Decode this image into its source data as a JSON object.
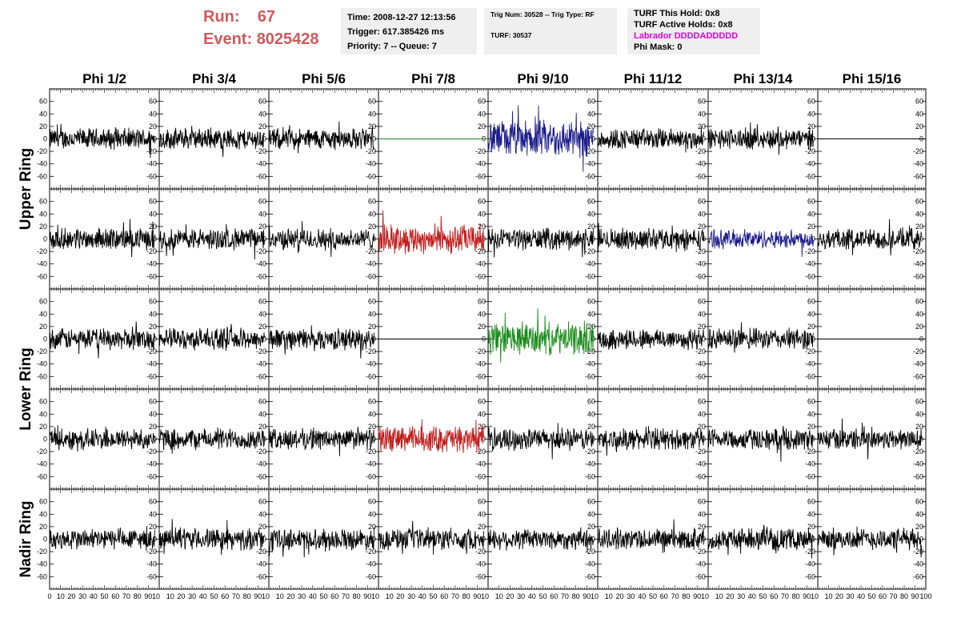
{
  "run": {
    "label": "Run:",
    "value": "67"
  },
  "event": {
    "label": "Event:",
    "value": "8025428"
  },
  "info1": {
    "time": "Time: 2008-12-27 12:13:56",
    "trigger": "Trigger: 617.385426 ms",
    "priority": "Priority: 7 -- Queue: 7"
  },
  "info2": {
    "trig": "Trig Num: 30528 -- Trig Type: RF",
    "turf": "TURF: 30537"
  },
  "info3": {
    "this_hold": "TURF This Hold: 0x8",
    "active_holds": "TURF Active Holds: 0x8",
    "labrador": "Labrador DDDDADDDDD",
    "phi_mask": "Phi Mask: 0"
  },
  "colors": {
    "accent_red": "#d05a5a",
    "labrador": "#e000e0",
    "trace_black": "#000000",
    "trace_blue": "#1c1c8c",
    "trace_red": "#c01c1c",
    "trace_green": "#1a8a1a",
    "panel_bg": "#efefef"
  },
  "chart_data": {
    "type": "line",
    "columns": [
      "Phi 1/2",
      "Phi 3/4",
      "Phi 5/6",
      "Phi 7/8",
      "Phi 9/10",
      "Phi 11/12",
      "Phi 13/14",
      "Phi 15/16"
    ],
    "rows": [
      {
        "name": "Upper Ring"
      },
      {
        "name": ""
      },
      {
        "name": "Lower Ring"
      },
      {
        "name": ""
      },
      {
        "name": "Nadir Ring"
      }
    ],
    "row_labels": [
      {
        "text": "Upper Ring",
        "rows": [
          0,
          1
        ]
      },
      {
        "text": "Lower Ring",
        "rows": [
          2,
          3
        ]
      },
      {
        "text": "Nadir Ring",
        "rows": [
          4
        ]
      }
    ],
    "ylim": [
      -75,
      75
    ],
    "yticks": [
      "-60",
      "-40",
      "-20",
      "0",
      "20",
      "40",
      "60"
    ],
    "ytick_values": [
      -60,
      -40,
      -20,
      0,
      20,
      40,
      60
    ],
    "xlim": [
      0,
      100
    ],
    "xticks": [
      "0",
      "10",
      "20",
      "30",
      "40",
      "50",
      "60",
      "70",
      "80",
      "90",
      "100"
    ],
    "xtick_values": [
      0,
      10,
      20,
      30,
      40,
      50,
      60,
      70,
      80,
      90,
      100
    ],
    "x_tick_labels_visible": [
      "0",
      "10",
      "20",
      "30",
      "40",
      "50",
      "60",
      "70",
      "80",
      "90",
      "10",
      "10",
      "20",
      "30",
      "40",
      "50",
      "60",
      "70",
      "80",
      "90",
      "10",
      "10",
      "20",
      "30",
      "40",
      "50",
      "60",
      "70",
      "80",
      "90",
      "10",
      "10",
      "20",
      "30",
      "40",
      "50",
      "60",
      "70",
      "80",
      "90",
      "10",
      "10",
      "20",
      "30",
      "40",
      "50",
      "60",
      "70",
      "80",
      "90",
      "10",
      "10",
      "20",
      "30",
      "40",
      "50",
      "60",
      "70",
      "80",
      "90",
      "10",
      "10",
      "20",
      "30",
      "40",
      "50",
      "60",
      "70",
      "80",
      "90",
      "10",
      "10",
      "20",
      "30",
      "40",
      "50",
      "60",
      "70",
      "80",
      "90",
      "100"
    ],
    "flat_traces": [
      [
        0,
        3
      ],
      [
        0,
        7
      ],
      [
        2,
        3
      ],
      [
        2,
        7
      ]
    ],
    "flat_value": 0,
    "color_map": {
      "0,3": "trace_green",
      "0,4": "trace_blue",
      "1,3": "trace_red",
      "1,6": "trace_blue",
      "2,4": "trace_green",
      "3,3": "trace_red"
    },
    "trace_extent": {
      "x_start": 0,
      "x_end": 96,
      "samples": 260
    },
    "amplitude": {
      "default": 16,
      "0,4": 28,
      "1,3": 22,
      "1,6": 14,
      "2,4": 24,
      "3,3": 20
    }
  }
}
